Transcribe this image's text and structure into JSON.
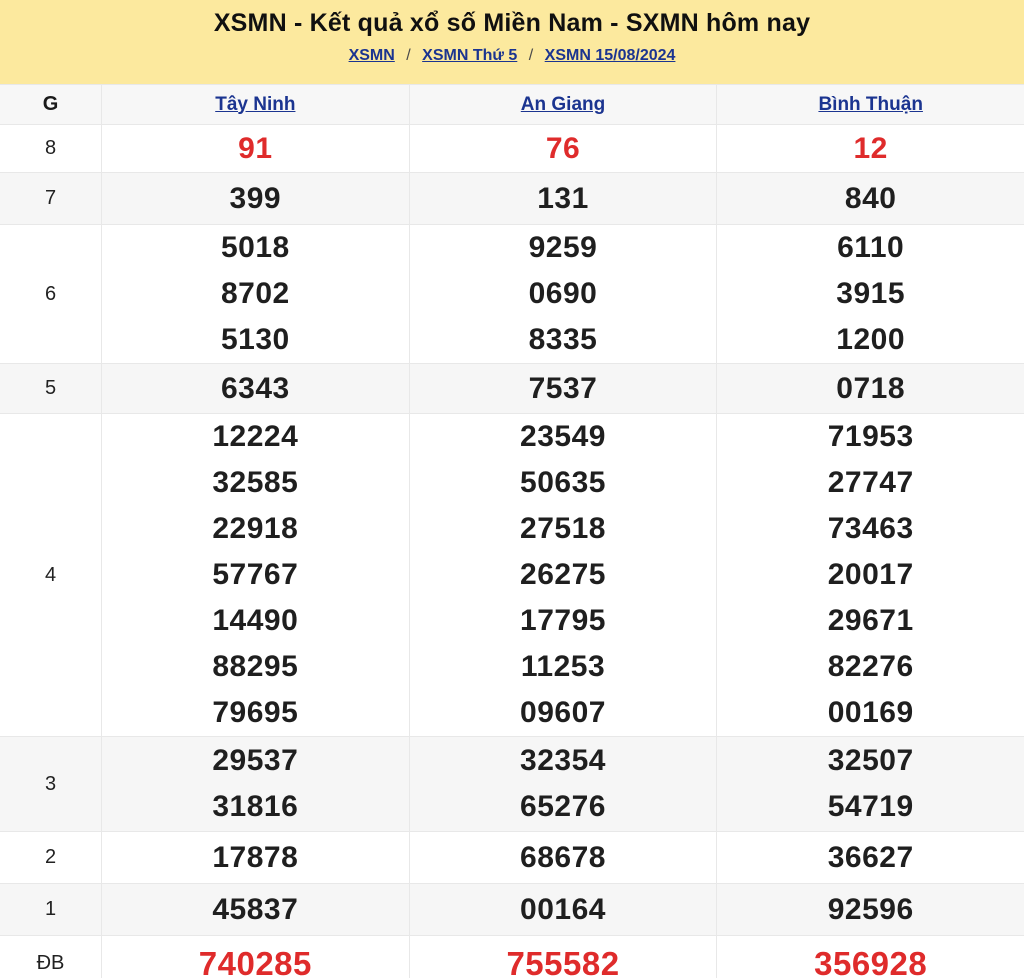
{
  "banner": {
    "title": "XSMN - Kết quả xổ số Miền Nam - SXMN hôm nay",
    "separator": "/",
    "breadcrumb": [
      {
        "label": "XSMN"
      },
      {
        "label": "XSMN Thứ 5"
      },
      {
        "label": "XSMN 15/08/2024"
      }
    ]
  },
  "table": {
    "prize_col_header": "G",
    "columns": [
      "Tây Ninh",
      "An Giang",
      "Bình Thuận"
    ],
    "rows": [
      {
        "prize": "8",
        "highlight": true,
        "values": [
          [
            "91"
          ],
          [
            "76"
          ],
          [
            "12"
          ]
        ]
      },
      {
        "prize": "7",
        "highlight": false,
        "values": [
          [
            "399"
          ],
          [
            "131"
          ],
          [
            "840"
          ]
        ]
      },
      {
        "prize": "6",
        "highlight": false,
        "values": [
          [
            "5018",
            "8702",
            "5130"
          ],
          [
            "9259",
            "0690",
            "8335"
          ],
          [
            "6110",
            "3915",
            "1200"
          ]
        ]
      },
      {
        "prize": "5",
        "highlight": false,
        "values": [
          [
            "6343"
          ],
          [
            "7537"
          ],
          [
            "0718"
          ]
        ]
      },
      {
        "prize": "4",
        "highlight": false,
        "values": [
          [
            "12224",
            "32585",
            "22918",
            "57767",
            "14490",
            "88295",
            "79695"
          ],
          [
            "23549",
            "50635",
            "27518",
            "26275",
            "17795",
            "11253",
            "09607"
          ],
          [
            "71953",
            "27747",
            "73463",
            "20017",
            "29671",
            "82276",
            "00169"
          ]
        ]
      },
      {
        "prize": "3",
        "highlight": false,
        "values": [
          [
            "29537",
            "31816"
          ],
          [
            "32354",
            "65276"
          ],
          [
            "32507",
            "54719"
          ]
        ]
      },
      {
        "prize": "2",
        "highlight": false,
        "values": [
          [
            "17878"
          ],
          [
            "68678"
          ],
          [
            "36627"
          ]
        ]
      },
      {
        "prize": "1",
        "highlight": false,
        "values": [
          [
            "45837"
          ],
          [
            "00164"
          ],
          [
            "92596"
          ]
        ]
      },
      {
        "prize": "ĐB",
        "highlight": true,
        "values": [
          [
            "740285"
          ],
          [
            "755582"
          ],
          [
            "356928"
          ]
        ]
      }
    ]
  },
  "colors": {
    "yellow": "#fce99e",
    "navy": "#1b3490",
    "red": "#df2b2b",
    "ink": "#1f1f1f",
    "stripe": "#f6f6f6",
    "border": "#e8e8e8"
  }
}
